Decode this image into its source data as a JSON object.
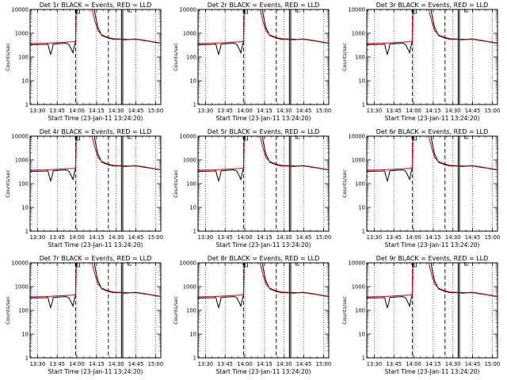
{
  "figure": {
    "background": "#ffffff",
    "event_color": "#000000",
    "lld_color": "#cc0000"
  },
  "chart_data": [
    {
      "type": "line",
      "title": "Det 1r BLACK = Events, RED = LLD",
      "xlabel": "Start Time (23-Jan-11 13:24:20)",
      "ylabel": "Counts/sec",
      "x_ticks": [
        "13:30",
        "13:45",
        "14:00",
        "14:15",
        "14:30",
        "14:45",
        "15:00"
      ],
      "y_ticks": [
        "1",
        "10",
        "100",
        "1000",
        "10000"
      ],
      "yscale": "log",
      "ylim": [
        1,
        10000
      ],
      "xlim": [
        "13:24:20",
        "15:04:00"
      ],
      "grid": "dotted-vertical",
      "dashed_lines": [
        "13:59",
        "14:24"
      ],
      "solid_lines": [
        "14:34",
        "14:35"
      ],
      "series": [
        {
          "name": "Events",
          "color": "#000000"
        },
        {
          "name": "LLD",
          "color": "#cc0000"
        }
      ]
    },
    {
      "type": "line",
      "title": "Det 2r BLACK = Events, RED = LLD",
      "xlabel": "Start Time (23-Jan-11 13:24:20)",
      "ylabel": "Counts/sec",
      "x_ticks": [
        "13:30",
        "13:45",
        "14:00",
        "14:15",
        "14:30",
        "14:45",
        "15:00"
      ],
      "y_ticks": [
        "1",
        "10",
        "100",
        "1000",
        "10000"
      ],
      "yscale": "log",
      "ylim": [
        1,
        10000
      ],
      "xlim": [
        "13:24:20",
        "15:04:00"
      ],
      "grid": "dotted-vertical",
      "dashed_lines": [
        "13:59",
        "14:24"
      ],
      "solid_lines": [
        "14:34",
        "14:35"
      ],
      "series": [
        {
          "name": "Events",
          "color": "#000000"
        },
        {
          "name": "LLD",
          "color": "#cc0000"
        }
      ]
    },
    {
      "type": "line",
      "title": "Det 3r BLACK = Events, RED = LLD",
      "xlabel": "Start Time (23-Jan-11 13:24:20)",
      "ylabel": "Counts/sec",
      "x_ticks": [
        "13:30",
        "13:45",
        "14:00",
        "14:15",
        "14:30",
        "14:45",
        "15:00"
      ],
      "y_ticks": [
        "1",
        "10",
        "100",
        "1000",
        "10000"
      ],
      "yscale": "log",
      "ylim": [
        1,
        10000
      ],
      "xlim": [
        "13:24:20",
        "15:04:00"
      ],
      "grid": "dotted-vertical",
      "dashed_lines": [
        "13:59",
        "14:24"
      ],
      "solid_lines": [
        "14:34",
        "14:35"
      ],
      "series": [
        {
          "name": "Events",
          "color": "#000000"
        },
        {
          "name": "LLD",
          "color": "#cc0000"
        }
      ]
    },
    {
      "type": "line",
      "title": "Det 4r BLACK = Events, RED = LLD",
      "xlabel": "Start Time (23-Jan-11 13:24:20)",
      "ylabel": "Counts/sec",
      "x_ticks": [
        "13:30",
        "13:45",
        "14:00",
        "14:15",
        "14:30",
        "14:45",
        "15:00"
      ],
      "y_ticks": [
        "1",
        "10",
        "100",
        "1000",
        "10000"
      ],
      "yscale": "log",
      "ylim": [
        1,
        10000
      ],
      "xlim": [
        "13:24:20",
        "15:04:00"
      ],
      "grid": "dotted-vertical",
      "dashed_lines": [
        "13:59",
        "14:24"
      ],
      "solid_lines": [
        "14:34",
        "14:35"
      ],
      "series": [
        {
          "name": "Events",
          "color": "#000000"
        },
        {
          "name": "LLD",
          "color": "#cc0000"
        }
      ]
    },
    {
      "type": "line",
      "title": "Det 5r BLACK = Events, RED = LLD",
      "xlabel": "Start Time (23-Jan-11 13:24:20)",
      "ylabel": "Counts/sec",
      "x_ticks": [
        "13:30",
        "13:45",
        "14:00",
        "14:15",
        "14:30",
        "14:45",
        "15:00"
      ],
      "y_ticks": [
        "1",
        "10",
        "100",
        "1000",
        "10000"
      ],
      "yscale": "log",
      "ylim": [
        1,
        10000
      ],
      "xlim": [
        "13:24:20",
        "15:04:00"
      ],
      "grid": "dotted-vertical",
      "dashed_lines": [
        "13:59",
        "14:24"
      ],
      "solid_lines": [
        "14:34",
        "14:35"
      ],
      "series": [
        {
          "name": "Events",
          "color": "#000000"
        },
        {
          "name": "LLD",
          "color": "#cc0000"
        }
      ]
    },
    {
      "type": "line",
      "title": "Det 6r BLACK = Events, RED = LLD",
      "xlabel": "Start Time (23-Jan-11 13:24:20)",
      "ylabel": "Counts/sec",
      "x_ticks": [
        "13:30",
        "13:45",
        "14:00",
        "14:15",
        "14:30",
        "14:45",
        "15:00"
      ],
      "y_ticks": [
        "1",
        "10",
        "100",
        "1000",
        "10000"
      ],
      "yscale": "log",
      "ylim": [
        1,
        10000
      ],
      "xlim": [
        "13:24:20",
        "15:04:00"
      ],
      "grid": "dotted-vertical",
      "dashed_lines": [
        "13:59",
        "14:24"
      ],
      "solid_lines": [
        "14:34",
        "14:35"
      ],
      "series": [
        {
          "name": "Events",
          "color": "#000000"
        },
        {
          "name": "LLD",
          "color": "#cc0000"
        }
      ]
    },
    {
      "type": "line",
      "title": "Det 7r BLACK = Events, RED = LLD",
      "xlabel": "Start Time (23-Jan-11 13:24:20)",
      "ylabel": "Counts/sec",
      "x_ticks": [
        "13:30",
        "13:45",
        "14:00",
        "14:15",
        "14:30",
        "14:45",
        "15:00"
      ],
      "y_ticks": [
        "1",
        "10",
        "100",
        "1000",
        "10000"
      ],
      "yscale": "log",
      "ylim": [
        1,
        10000
      ],
      "xlim": [
        "13:24:20",
        "15:04:00"
      ],
      "grid": "dotted-vertical",
      "dashed_lines": [
        "13:59",
        "14:24"
      ],
      "solid_lines": [
        "14:34",
        "14:35"
      ],
      "series": [
        {
          "name": "Events",
          "color": "#000000"
        },
        {
          "name": "LLD",
          "color": "#cc0000"
        }
      ]
    },
    {
      "type": "line",
      "title": "Det 8r BLACK = Events, RED = LLD",
      "xlabel": "Start Time (23-Jan-11 13:24:20)",
      "ylabel": "Counts/sec",
      "x_ticks": [
        "13:30",
        "13:45",
        "14:00",
        "14:15",
        "14:30",
        "14:45",
        "15:00"
      ],
      "y_ticks": [
        "1",
        "10",
        "100",
        "1000",
        "10000"
      ],
      "yscale": "log",
      "ylim": [
        1,
        10000
      ],
      "xlim": [
        "13:24:20",
        "15:04:00"
      ],
      "grid": "dotted-vertical",
      "dashed_lines": [
        "13:59",
        "14:24"
      ],
      "solid_lines": [
        "14:34",
        "14:35"
      ],
      "series": [
        {
          "name": "Events",
          "color": "#000000"
        },
        {
          "name": "LLD",
          "color": "#cc0000"
        }
      ]
    },
    {
      "type": "line",
      "title": "Det 9r BLACK = Events, RED = LLD",
      "xlabel": "Start Time (23-Jan-11 13:24:20)",
      "ylabel": "Counts/sec",
      "x_ticks": [
        "13:30",
        "13:45",
        "14:00",
        "14:15",
        "14:30",
        "14:45",
        "15:00"
      ],
      "y_ticks": [
        "1",
        "10",
        "100",
        "1000",
        "10000"
      ],
      "yscale": "log",
      "ylim": [
        1,
        10000
      ],
      "xlim": [
        "13:24:20",
        "15:04:00"
      ],
      "grid": "dotted-vertical",
      "dashed_lines": [
        "13:59",
        "14:24"
      ],
      "solid_lines": [
        "14:34",
        "14:35"
      ],
      "series": [
        {
          "name": "Events",
          "color": "#000000"
        },
        {
          "name": "LLD",
          "color": "#cc0000"
        }
      ]
    }
  ],
  "curves": {
    "events": [
      [
        "13:24:20",
        330
      ],
      [
        "13:26",
        330
      ],
      [
        "13:30",
        335
      ],
      [
        "13:36",
        340
      ],
      [
        "13:38",
        345
      ],
      [
        "13:39",
        200
      ],
      [
        "13:40",
        130
      ],
      [
        "13:41",
        200
      ],
      [
        "13:42",
        350
      ],
      [
        "13:48",
        370
      ],
      [
        "13:52",
        380
      ],
      [
        "13:54",
        330
      ],
      [
        "13:56",
        200
      ],
      [
        "13:57",
        150
      ],
      [
        "13:58",
        280
      ],
      [
        "13:59",
        450
      ],
      [
        "13:59:30",
        13000
      ],
      [
        "14:13",
        13000
      ],
      [
        "14:14",
        6000
      ],
      [
        "14:16",
        1800
      ],
      [
        "14:19",
        800
      ],
      [
        "14:24",
        620
      ],
      [
        "14:28",
        560
      ],
      [
        "14:34",
        550
      ],
      [
        "14:37",
        530
      ],
      [
        "14:40",
        545
      ],
      [
        "14:44",
        560
      ],
      [
        "14:47",
        540
      ],
      [
        "14:51",
        490
      ],
      [
        "14:56",
        450
      ],
      [
        "15:00",
        410
      ],
      [
        "15:04",
        380
      ]
    ],
    "lld": [
      [
        "13:24:20",
        370
      ],
      [
        "13:30",
        375
      ],
      [
        "13:36",
        380
      ],
      [
        "13:38",
        385
      ],
      [
        "13:40",
        390
      ],
      [
        "13:44",
        400
      ],
      [
        "13:50",
        420
      ],
      [
        "13:54",
        430
      ],
      [
        "13:57",
        435
      ],
      [
        "13:59",
        470
      ],
      [
        "13:59:30",
        13000
      ],
      [
        "14:11",
        13000
      ],
      [
        "14:12",
        8000
      ],
      [
        "14:14",
        3000
      ],
      [
        "14:16",
        1300
      ],
      [
        "14:19",
        850
      ],
      [
        "14:24",
        660
      ],
      [
        "14:28",
        590
      ],
      [
        "14:34",
        570
      ],
      [
        "14:40",
        560
      ],
      [
        "14:44",
        580
      ],
      [
        "14:47",
        560
      ],
      [
        "14:51",
        510
      ],
      [
        "14:56",
        460
      ],
      [
        "15:00",
        420
      ],
      [
        "15:04",
        390
      ]
    ],
    "symbols": {
      "plus": {
        "x": "13:59:30",
        "y": 10000
      },
      "square": {
        "x": "14:00:30",
        "y": 9700
      },
      "square_top_right": {
        "x": "14:39",
        "y": 10000
      }
    }
  }
}
